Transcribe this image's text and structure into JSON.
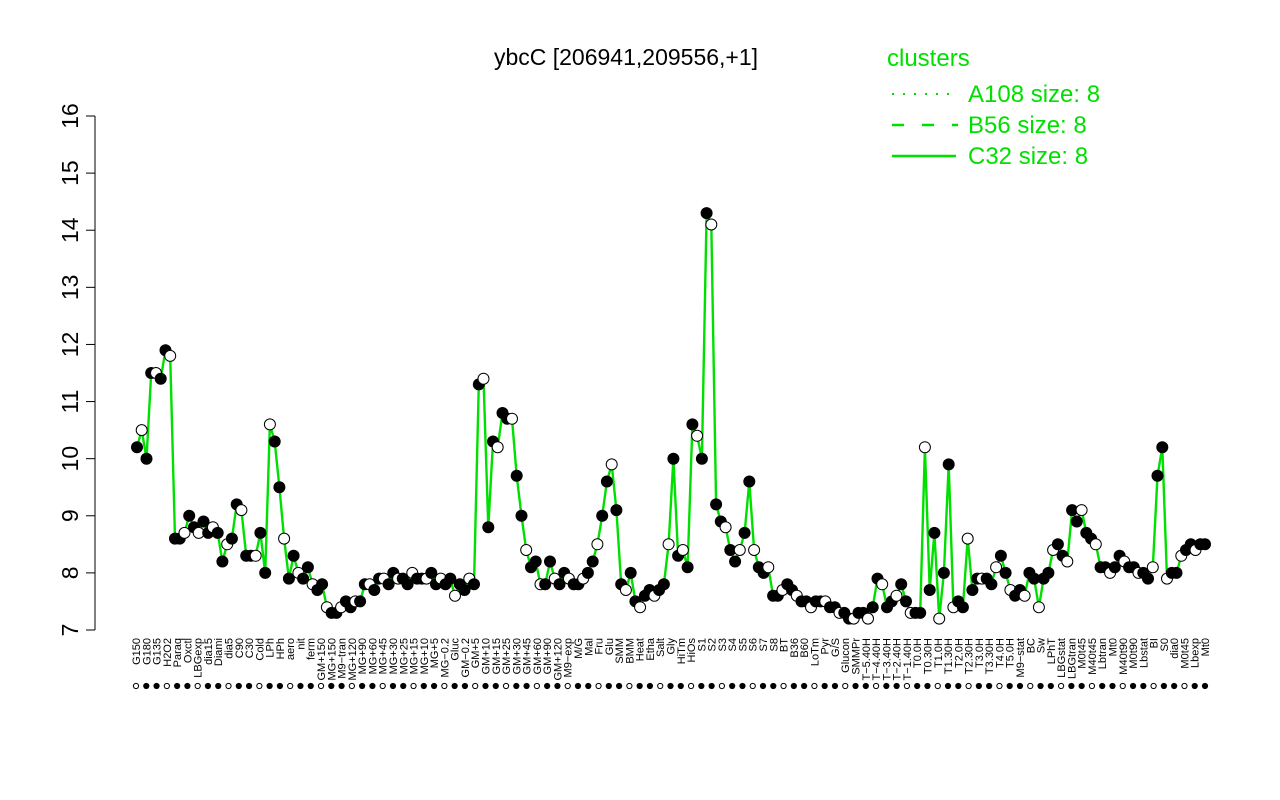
{
  "chart_data": {
    "type": "line",
    "title": "ybcC [206941,209556,+1]",
    "xlabel": "",
    "ylabel": "",
    "ylim": [
      7,
      16
    ],
    "yticks": [
      7,
      8,
      9,
      10,
      11,
      12,
      13,
      14,
      15,
      16
    ],
    "grid": false,
    "legend": {
      "title": "clusters",
      "placement": "top-right",
      "entries": [
        {
          "label": "A108 size: 8",
          "style": "dotted"
        },
        {
          "label": "B56 size: 8",
          "style": "dashed"
        },
        {
          "label": "C32 size: 8",
          "style": "solid"
        }
      ]
    },
    "x_tick_labels": [
      "G150",
      "G180",
      "G135",
      "H2O2",
      "Paraq",
      "Oxctl",
      "LBGexp",
      "dia15",
      "Diami",
      "dia5",
      "C90",
      "C30",
      "Cold",
      "LPh",
      "HPh",
      "aero",
      "nit",
      "ferm",
      "GM+150",
      "MG+150",
      "M9−tran",
      "MG+120",
      "MG+90",
      "MG+60",
      "MG+45",
      "MG+30",
      "MG+25",
      "MG+15",
      "MG+10",
      "MG+5",
      "MG−0.2",
      "Gluc",
      "GM−0.2",
      "GM+5",
      "GM+10",
      "GM+15",
      "GM+25",
      "GM+30",
      "GM+45",
      "GM+60",
      "GM+90",
      "GM+120",
      "M9−exp",
      "M/G",
      "Mal",
      "Fru",
      "Glu",
      "SMM",
      "BMM",
      "Heat",
      "Etha",
      "Salt",
      "Gly",
      "HiTm",
      "HiOs",
      "S1",
      "S2",
      "S3",
      "S4",
      "S5",
      "S6",
      "S7",
      "S8",
      "BT",
      "B36",
      "B60",
      "LoTm",
      "Pyr",
      "G/S",
      "Glucon",
      "SMMPr",
      "T−5.40H",
      "T−4.40H",
      "T−3.40H",
      "T−2.40H",
      "T−1.40H",
      "T0.0H",
      "T0.30H",
      "T1.0H",
      "T1.30H",
      "T2.0H",
      "T2.30H",
      "T3.0H",
      "T3.30H",
      "T4.0H",
      "T5.0H",
      "M9−stat",
      "BC",
      "Sw",
      "LPhT",
      "LBGstat",
      "LBGtran",
      "M0t45",
      "M40t45",
      "Lbtran",
      "Mt0",
      "M40t90",
      "M0t90",
      "Lbstat",
      "BI",
      "S0",
      "dia0",
      "M0t45",
      "Lbexp",
      "Mt0"
    ],
    "series": [
      {
        "values": [
          10.2,
          10.5,
          10.0,
          11.5,
          11.5,
          11.4,
          11.9,
          11.8,
          8.6,
          8.6,
          8.7,
          9.0,
          8.8,
          8.7,
          8.9,
          8.7,
          8.8,
          8.7,
          8.2,
          8.5,
          8.6,
          9.2,
          9.1,
          8.3,
          8.3,
          8.3,
          8.7,
          8.0,
          10.6,
          10.3,
          9.5,
          8.6,
          7.9,
          8.3,
          8.0,
          7.9,
          8.1,
          7.8,
          7.7,
          7.8,
          7.4,
          7.3,
          7.3,
          7.4,
          7.5,
          7.4,
          7.5,
          7.5,
          7.8,
          7.8,
          7.7,
          7.9,
          7.9,
          7.8,
          8.0,
          7.9,
          7.9,
          7.8,
          8.0,
          7.9,
          7.9,
          7.9,
          8.0,
          7.8,
          7.9,
          7.8,
          7.9,
          7.6,
          7.8,
          7.7,
          7.9,
          7.8,
          11.3,
          11.4,
          8.8,
          10.3,
          10.2,
          10.8,
          10.7,
          10.7,
          9.7,
          9.0,
          8.4,
          8.1,
          8.2,
          7.8,
          7.8,
          8.2,
          7.9,
          7.8,
          8.0,
          7.9,
          7.8,
          7.8,
          7.9,
          8.0,
          8.2,
          8.5,
          9.0,
          9.6,
          9.9,
          9.1,
          7.8,
          7.7,
          8.0,
          7.5,
          7.4,
          7.6,
          7.7,
          7.6,
          7.7,
          7.8,
          8.5,
          10.0,
          8.3,
          8.4,
          8.1,
          10.6,
          10.4,
          10.0,
          14.3,
          14.1,
          9.2,
          8.9,
          8.8,
          8.4,
          8.2,
          8.4,
          8.7,
          9.6,
          8.4,
          8.1,
          8.0,
          8.1,
          7.6,
          7.6,
          7.7,
          7.8,
          7.7,
          7.6,
          7.5,
          7.5,
          7.4,
          7.5,
          7.5,
          7.5,
          7.4,
          7.4,
          7.3,
          7.3,
          7.2,
          7.2,
          7.3,
          7.3,
          7.2,
          7.4,
          7.9,
          7.8,
          7.4,
          7.5,
          7.6,
          7.8,
          7.5,
          7.3,
          7.3,
          7.3,
          10.2,
          7.7,
          8.7,
          7.2,
          8.0,
          9.9,
          7.4,
          7.5,
          7.4,
          8.6,
          7.7,
          7.9,
          7.9,
          7.9,
          7.8,
          8.1,
          8.3,
          8.0,
          7.7,
          7.6,
          7.7,
          7.6,
          8.0,
          7.9,
          7.4,
          7.9,
          8.0,
          8.4,
          8.5,
          8.3,
          8.2,
          9.1,
          8.9,
          9.1,
          8.7,
          8.6,
          8.5,
          8.1,
          8.1,
          8.0,
          8.1,
          8.3,
          8.2,
          8.1,
          8.1,
          8.0,
          8.0,
          7.9,
          8.1,
          9.7,
          10.2,
          7.9,
          8.0,
          8.0,
          8.3,
          8.4,
          8.5,
          8.4,
          8.5,
          8.5
        ]
      }
    ]
  },
  "colors": {
    "line": "#00e000",
    "point_open": "#ffffff",
    "point_filled": "#000000",
    "axis": "#000000",
    "legend_text": "#00e000"
  }
}
